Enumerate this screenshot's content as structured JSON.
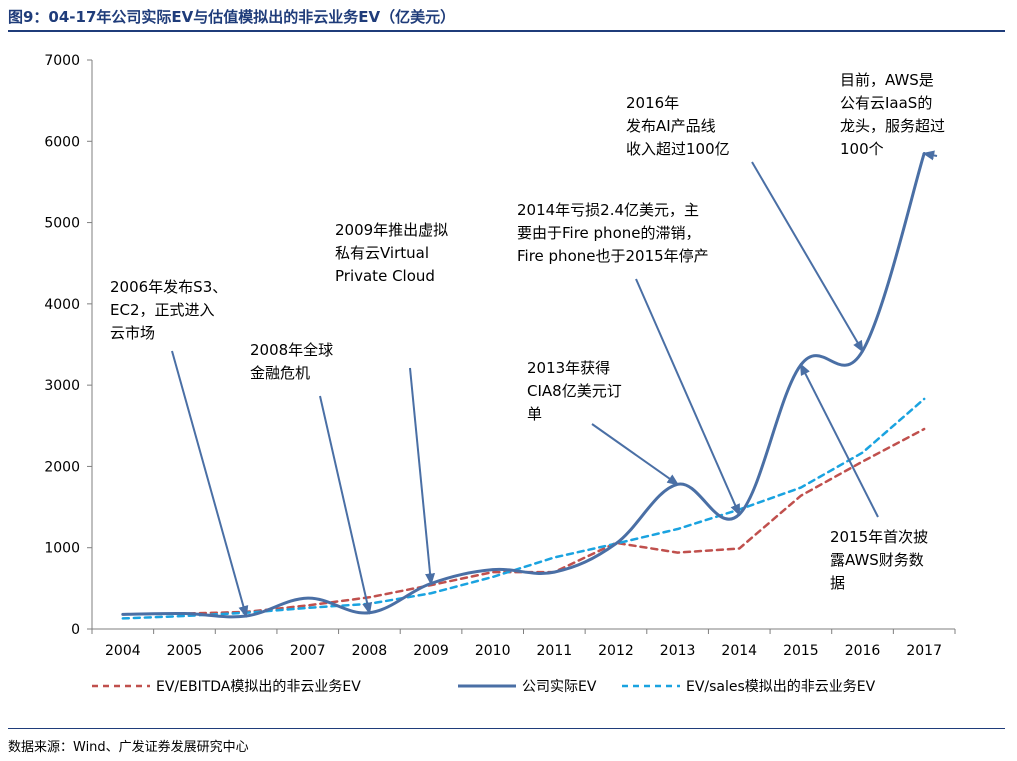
{
  "figure": {
    "title": "图9：04-17年公司实际EV与估值模拟出的非云业务EV（亿美元）",
    "source": "数据来源：Wind、广发证券发展研究中心"
  },
  "chart_data": {
    "type": "line",
    "categories": [
      "2004",
      "2005",
      "2006",
      "2007",
      "2008",
      "2009",
      "2010",
      "2011",
      "2012",
      "2013",
      "2014",
      "2015",
      "2016",
      "2017"
    ],
    "ylim": [
      0,
      7000
    ],
    "yticks": [
      0,
      1000,
      2000,
      3000,
      4000,
      5000,
      6000,
      7000
    ],
    "grid": false,
    "legend_position": "bottom",
    "series": [
      {
        "name": "EV/EBITDA模拟出的非云业务EV",
        "color": "#c0504d",
        "style": "dashed",
        "smooth": false,
        "values": [
          180,
          190,
          210,
          290,
          390,
          540,
          700,
          700,
          1060,
          940,
          990,
          1640,
          2060,
          2460
        ]
      },
      {
        "name": "公司实际EV",
        "color": "#4a6fa5",
        "style": "solid",
        "smooth": true,
        "values": [
          180,
          190,
          160,
          380,
          200,
          560,
          730,
          700,
          1050,
          1780,
          1410,
          3250,
          3420,
          5850
        ]
      },
      {
        "name": "EV/sales模拟出的非云业务EV",
        "color": "#1aa3e0",
        "style": "dashed",
        "smooth": false,
        "values": [
          130,
          160,
          200,
          260,
          310,
          440,
          640,
          880,
          1050,
          1230,
          1470,
          1740,
          2170,
          2830
        ]
      }
    ],
    "annotations": [
      {
        "lines": [
          "2006年发布S3、",
          "EC2，正式进入",
          "云市场"
        ],
        "target": {
          "x": "2006",
          "y": 160
        }
      },
      {
        "lines": [
          "2008年全球",
          "金融危机"
        ],
        "target": {
          "x": "2008",
          "y": 200
        }
      },
      {
        "lines": [
          "2009年推出虚拟",
          "私有云Virtual",
          "Private Cloud"
        ],
        "target": {
          "x": "2009",
          "y": 560
        }
      },
      {
        "lines": [
          "2013年获得",
          "CIA8亿美元订",
          "单"
        ],
        "target": {
          "x": "2013",
          "y": 1780
        }
      },
      {
        "lines": [
          "2014年亏损2.4亿美元，主",
          "要由于Fire phone的滞销，",
          "Fire phone也于2015年停产"
        ],
        "target": {
          "x": "2014",
          "y": 1410
        }
      },
      {
        "lines": [
          "2016年",
          "发布AI产品线",
          "收入超过100亿"
        ],
        "target": {
          "x": "2016",
          "y": 3420
        }
      },
      {
        "lines": [
          "目前，AWS是",
          "公有云IaaS的",
          "龙头，服务超过",
          "100个"
        ],
        "target": {
          "x": "2017",
          "y": 5850
        }
      },
      {
        "lines": [
          "2015年首次披",
          "露AWS财务数",
          "据"
        ],
        "target": {
          "x": "2015",
          "y": 3250
        }
      }
    ]
  }
}
